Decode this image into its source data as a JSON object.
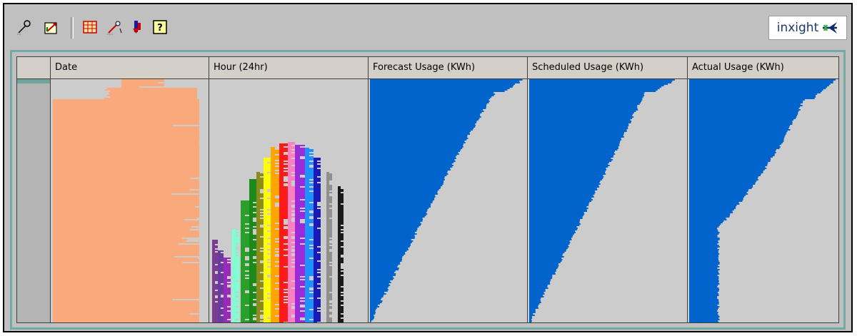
{
  "toolbar": {
    "buttons": [
      {
        "name": "zoom-tool-button",
        "icon": "magnifier-pen-icon"
      },
      {
        "name": "chart-tool-button",
        "icon": "chart-arrow-icon"
      },
      {
        "name": "grid-tool-button",
        "icon": "table-grid-icon"
      },
      {
        "name": "wand-tool-button",
        "icon": "magic-wand-icon"
      },
      {
        "name": "sort-tool-button",
        "icon": "sort-down-icon"
      },
      {
        "name": "help-button",
        "icon": "help-question-icon"
      }
    ]
  },
  "logo": {
    "text": "inxight",
    "icon": "star-arrow-icon"
  },
  "table": {
    "columns": [
      {
        "label": "Date"
      },
      {
        "label": "Hour (24hr)"
      },
      {
        "label": "Forecast Usage (KWh)"
      },
      {
        "label": "Scheduled Usage (KWh)"
      },
      {
        "label": "Actual Usage (KWh)"
      }
    ]
  },
  "colors": {
    "date_fill": "#f9a97b",
    "usage_fill": "#0064cc",
    "background": "#cccccc",
    "panel_border": "#72aaa4",
    "hour_palette": [
      "#7a3d8f",
      "#6a3aa0",
      "#9a2bb8",
      "#7fffd4",
      "#2aa02a",
      "#1a8a1a",
      "#8c8c1a",
      "#ffff00",
      "#ffa500",
      "#ff1a1a",
      "#ff80c0",
      "#9a2bd8",
      "#1e90ff",
      "#1a1ab8",
      "#909090",
      "#1a1a1a"
    ]
  }
}
